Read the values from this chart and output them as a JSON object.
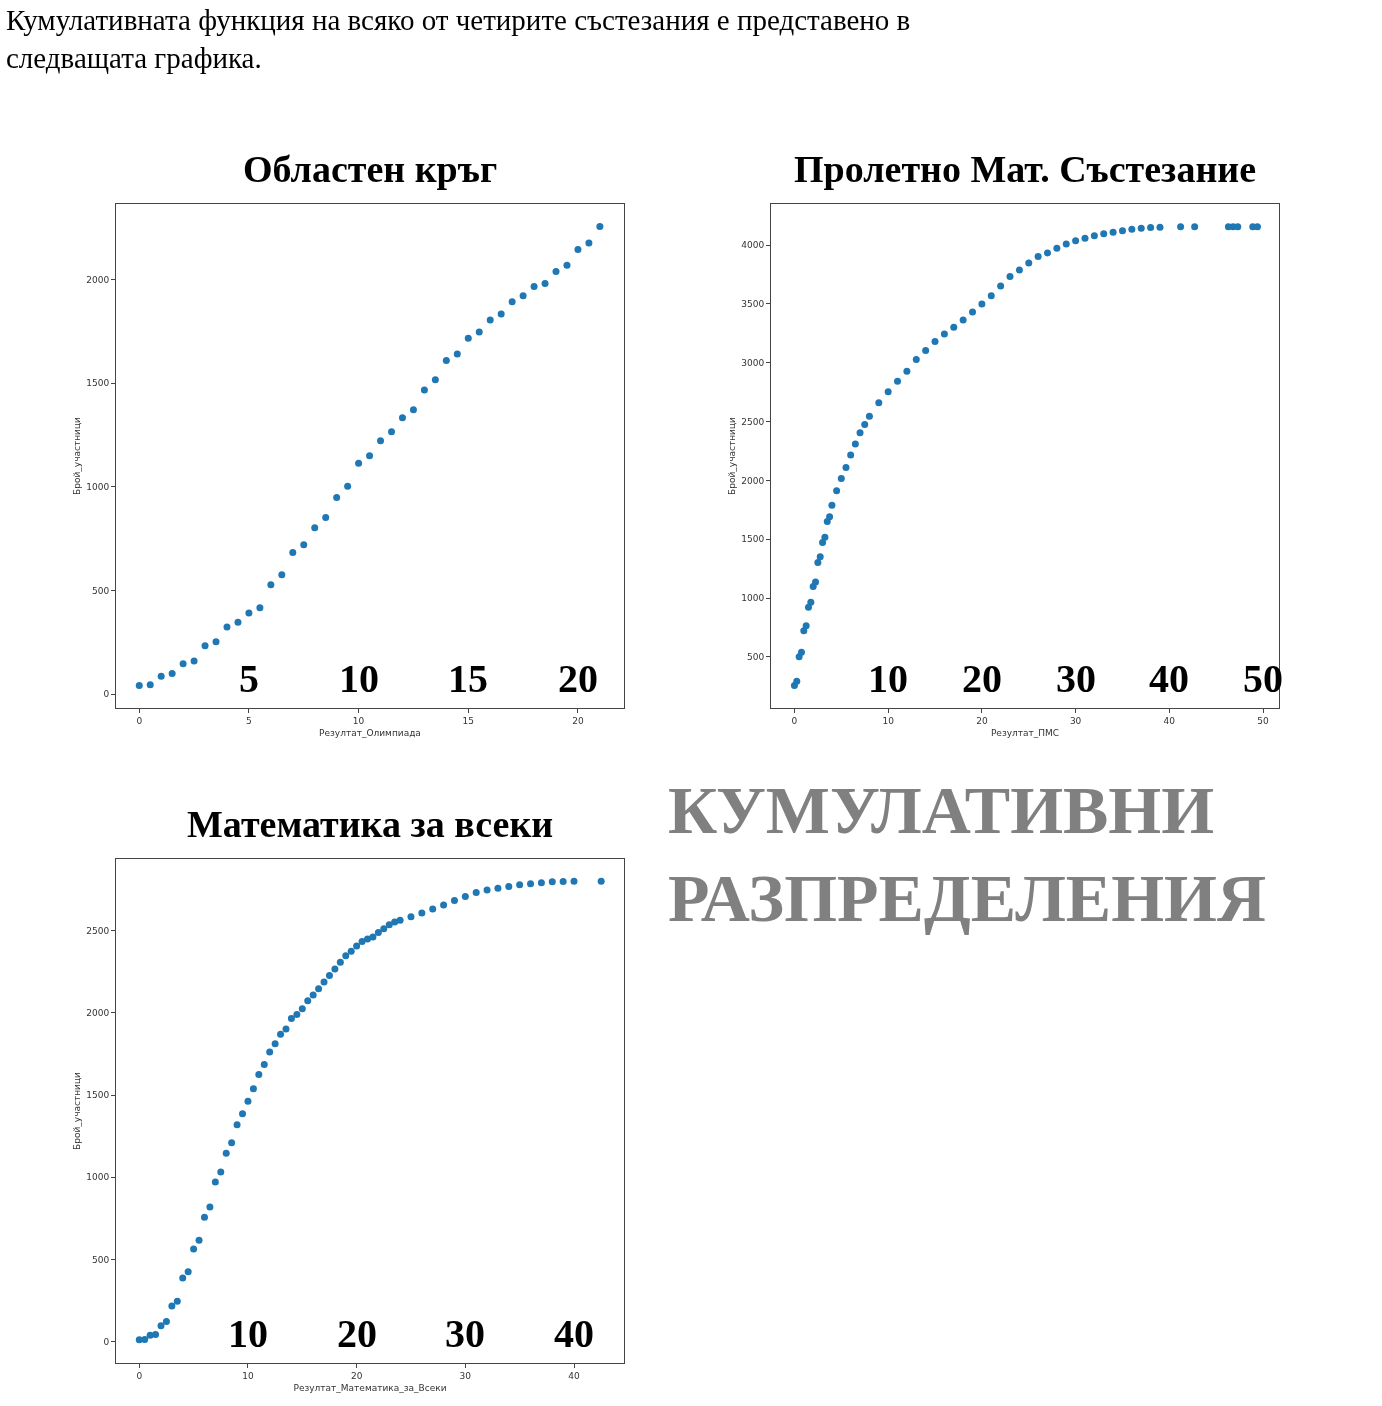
{
  "chart_data": [
    {
      "type": "other",
      "title": "Кумулативната функция на всяко от четирите състезания е представено в следващата графика."
    },
    {
      "type": "scatter",
      "title": "Областен кръг",
      "xlabel": "Резултат_Олимпиада",
      "ylabel": "Брой_участници",
      "color": "#1f77b4",
      "x": [
        0,
        0.5,
        1,
        1.5,
        2,
        2.5,
        3,
        3.5,
        4,
        4.5,
        5,
        5.5,
        6,
        6.5,
        7,
        7.5,
        8,
        8.5,
        9,
        9.5,
        10,
        10.5,
        11,
        11.5,
        12,
        12.5,
        13,
        13.5,
        14,
        14.5,
        15,
        15.5,
        16,
        16.5,
        17,
        17.5,
        18,
        18.5,
        19,
        19.5,
        20,
        20.5,
        21
      ],
      "values": [
        41,
        45,
        86,
        100,
        147,
        160,
        233,
        253,
        324,
        347,
        391,
        416,
        528,
        576,
        683,
        721,
        802,
        852,
        948,
        1002,
        1114,
        1150,
        1222,
        1266,
        1333,
        1372,
        1467,
        1516,
        1609,
        1640,
        1716,
        1747,
        1805,
        1834,
        1893,
        1921,
        1966,
        1981,
        2038,
        2069,
        2145,
        2176,
        2255
      ],
      "xlim": [
        -1.06,
        22.1
      ],
      "ylim": [
        -67,
        2364
      ],
      "xticks": [
        0,
        5,
        10,
        15,
        20
      ],
      "yticks": [
        0,
        500,
        1000,
        1500,
        2000
      ],
      "x2lim": [
        -1.06,
        22.1
      ],
      "x2ticks": [
        5,
        10,
        15,
        20
      ]
    },
    {
      "type": "scatter",
      "title": "Пролетно Мат. Състезание",
      "xlabel": "Резултат_ПМС",
      "ylabel": "Брой_участници",
      "color": "#1f77b4",
      "x": [
        0,
        0.25,
        0.5,
        0.75,
        1,
        1.25,
        1.5,
        1.75,
        2,
        2.25,
        2.5,
        2.75,
        3,
        3.25,
        3.5,
        3.75,
        4,
        4.5,
        5,
        5.5,
        6,
        6.5,
        7,
        7.5,
        8,
        9,
        10,
        11,
        12,
        13,
        14,
        15,
        16,
        17,
        18,
        19,
        20,
        21,
        22,
        23,
        24,
        25,
        26,
        27,
        28,
        29,
        30,
        31,
        32,
        33,
        34,
        35,
        36,
        37,
        38,
        39,
        41.2,
        42.7,
        46.3,
        46.8,
        47.3,
        48.9,
        49.4
      ],
      "values": [
        256,
        293,
        500,
        539,
        721,
        764,
        922,
        964,
        1098,
        1135,
        1302,
        1350,
        1472,
        1517,
        1651,
        1691,
        1788,
        1912,
        2016,
        2110,
        2216,
        2308,
        2405,
        2475,
        2545,
        2660,
        2754,
        2842,
        2927,
        3028,
        3104,
        3180,
        3243,
        3301,
        3362,
        3432,
        3499,
        3569,
        3651,
        3733,
        3787,
        3848,
        3903,
        3933,
        3973,
        4009,
        4036,
        4058,
        4079,
        4097,
        4109,
        4122,
        4134,
        4143,
        4149,
        4152,
        4155,
        4155,
        4155,
        4155,
        4155,
        4155,
        4155
      ],
      "xlim": [
        -2.5,
        51.7
      ],
      "ylim": [
        65,
        4349
      ],
      "xticks": [
        0,
        10,
        20,
        30,
        40,
        50
      ],
      "yticks": [
        500,
        1000,
        1500,
        2000,
        2500,
        3000,
        3500,
        4000
      ],
      "x2lim": [
        -2.5,
        51.7
      ],
      "x2ticks": [
        10,
        20,
        30,
        40,
        50
      ]
    },
    {
      "type": "scatter",
      "title": "Математика за всеки",
      "xlabel": "Резултат_Математика_за_Всеки",
      "ylabel": "Брой_участници",
      "color": "#1f77b4",
      "x": [
        0,
        0.5,
        1,
        1.5,
        2,
        2.5,
        3,
        3.5,
        4,
        4.5,
        5,
        5.5,
        6,
        6.5,
        7,
        7.5,
        8,
        8.5,
        9,
        9.5,
        10,
        10.5,
        11,
        11.5,
        12,
        12.5,
        13,
        13.5,
        14,
        14.5,
        15,
        15.5,
        16,
        16.5,
        17,
        17.5,
        18,
        18.5,
        19,
        19.5,
        20,
        20.5,
        21,
        21.5,
        22,
        22.5,
        23,
        23.5,
        24,
        25,
        26,
        27,
        28,
        29,
        30,
        31,
        32,
        33,
        34,
        35,
        36,
        37,
        38,
        39,
        40,
        42.5
      ],
      "values": [
        11,
        13,
        39,
        43,
        96,
        122,
        217,
        246,
        387,
        426,
        563,
        617,
        757,
        820,
        972,
        1033,
        1146,
        1211,
        1320,
        1387,
        1463,
        1539,
        1626,
        1687,
        1763,
        1813,
        1870,
        1902,
        1967,
        1991,
        2026,
        2074,
        2109,
        2148,
        2189,
        2228,
        2267,
        2309,
        2348,
        2376,
        2407,
        2435,
        2450,
        2463,
        2489,
        2513,
        2537,
        2554,
        2565,
        2585,
        2609,
        2633,
        2657,
        2685,
        2709,
        2733,
        2748,
        2759,
        2770,
        2780,
        2787,
        2793,
        2798,
        2800,
        2802,
        2802
      ],
      "xlim": [
        -2.14,
        44.6
      ],
      "ylim": [
        -130,
        2937
      ],
      "xticks": [
        0,
        10,
        20,
        30,
        40
      ],
      "yticks": [
        0,
        500,
        1000,
        1500,
        2000,
        2500
      ],
      "x2lim": [
        -2.14,
        44.6
      ],
      "x2ticks": [
        10,
        20,
        30,
        40
      ]
    },
    {
      "type": "other",
      "title": "КУМУЛАТИВНИ РАЗПРЕДЕЛЕНИЯ"
    }
  ]
}
